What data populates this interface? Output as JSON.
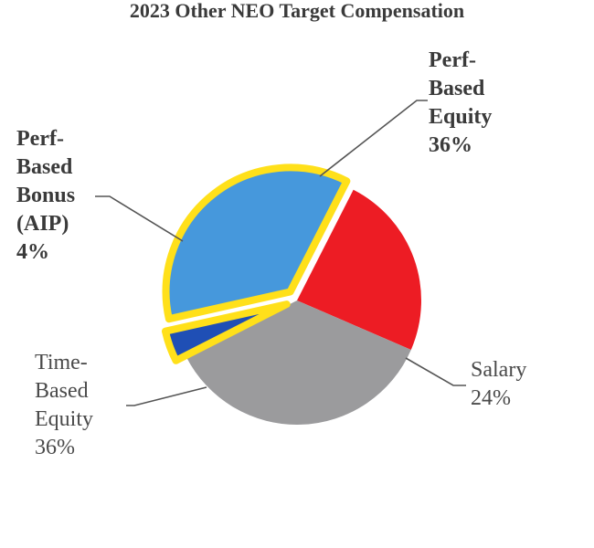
{
  "chart_data": {
    "type": "pie",
    "title": "2023 Other NEO Target Compensation",
    "unit": "%",
    "slices": [
      {
        "label": "Salary",
        "value": 24,
        "value_label": "24%",
        "color": "#ED1C24",
        "highlight": false
      },
      {
        "label": "Time-Based Equity",
        "value": 36,
        "value_label": "36%",
        "color": "#9B9B9D",
        "highlight": false
      },
      {
        "label": "Perf-Based Bonus (AIP)",
        "value": 4,
        "value_label": "4%",
        "color": "#1F4FB5",
        "highlight": true
      },
      {
        "label": "Perf-Based Equity",
        "value": 36,
        "value_label": "36%",
        "color": "#4698DC",
        "highlight": true
      }
    ],
    "highlight_outline_color": "#FFE01A",
    "leader_line_color": "#555555"
  },
  "labels": {
    "perf_equity": {
      "lines": [
        "Perf-",
        "Based",
        "Equity"
      ],
      "value": "36%"
    },
    "perf_bonus": {
      "lines": [
        "Perf-",
        "Based",
        "Bonus",
        "(AIP)"
      ],
      "value": "4%"
    },
    "time_equity": {
      "lines": [
        "Time-",
        "Based",
        "Equity"
      ],
      "value": "36%"
    },
    "salary": {
      "lines": [
        "Salary"
      ],
      "value": "24%"
    }
  }
}
